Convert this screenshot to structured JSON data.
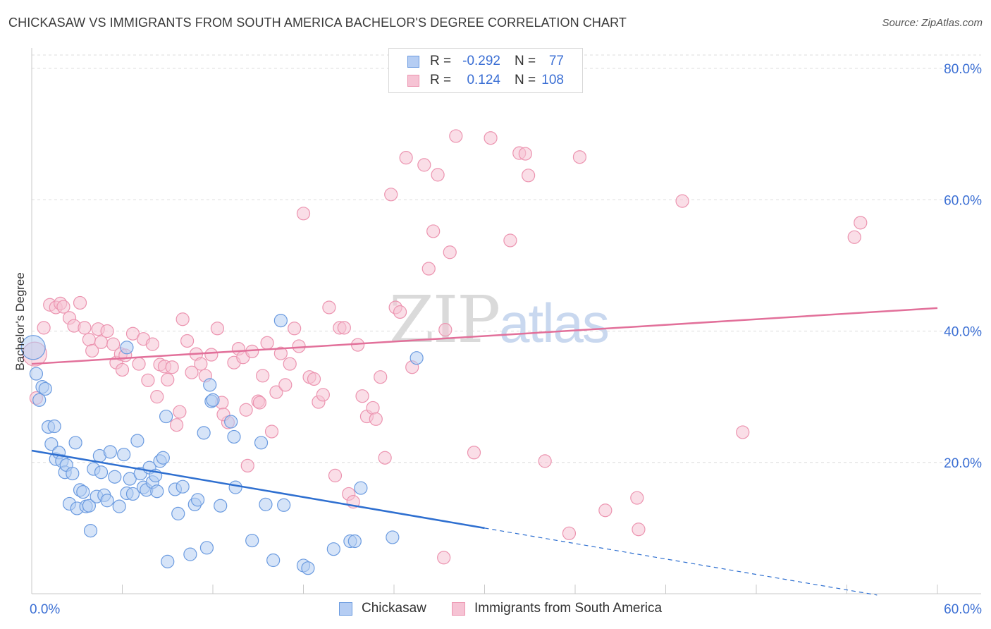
{
  "title": "CHICKASAW VS IMMIGRANTS FROM SOUTH AMERICA BACHELOR'S DEGREE CORRELATION CHART",
  "source": "Source: ZipAtlas.com",
  "watermark": {
    "zip": "ZIP",
    "atlas": "atlas"
  },
  "colors": {
    "blue": "#6b9be0",
    "blue_fill": "#b5cdf3",
    "blue_line": "#2e6fd0",
    "pink": "#ec94b0",
    "pink_fill": "#f6c3d4",
    "pink_line": "#e2709a",
    "axis_text": "#3b6fd4",
    "grid": "#dcdcdc"
  },
  "legend": {
    "r_label": "R =",
    "n_label": "N =",
    "entries": [
      {
        "name": "Chickasaw",
        "r": "-0.292",
        "n": "77"
      },
      {
        "name": "Immigrants from South America",
        "r": "0.124",
        "n": "108"
      }
    ]
  },
  "chart_data": {
    "type": "scatter",
    "title": "CHICKASAW VS IMMIGRANTS FROM SOUTH AMERICA BACHELOR'S DEGREE CORRELATION CHART",
    "xlabel": "",
    "ylabel": "Bachelor's Degree",
    "xlim": [
      0,
      60
    ],
    "ylim": [
      0,
      82
    ],
    "x_tick_labels": [
      "0.0%",
      "60.0%"
    ],
    "y_tick_labels": [
      "20.0%",
      "40.0%",
      "60.0%",
      "80.0%"
    ],
    "y_ticks": [
      20,
      40,
      60,
      80
    ],
    "x_ticks": [
      0,
      6,
      12,
      18,
      24,
      30,
      36,
      42,
      48,
      54,
      60
    ],
    "grid": true,
    "series": [
      {
        "name": "Chickasaw",
        "color": "blue",
        "points": [
          [
            0.1,
            37.5
          ],
          [
            0.3,
            33.5
          ],
          [
            0.5,
            29.5
          ],
          [
            0.7,
            31.5
          ],
          [
            0.9,
            31.2
          ],
          [
            1.1,
            25.4
          ],
          [
            1.3,
            22.8
          ],
          [
            1.5,
            25.5
          ],
          [
            1.6,
            20.5
          ],
          [
            1.8,
            21.5
          ],
          [
            2.0,
            20.2
          ],
          [
            2.2,
            18.5
          ],
          [
            2.3,
            19.6
          ],
          [
            2.5,
            13.7
          ],
          [
            2.7,
            18.3
          ],
          [
            2.9,
            23.0
          ],
          [
            3.0,
            13.0
          ],
          [
            3.2,
            15.8
          ],
          [
            3.4,
            15.5
          ],
          [
            3.6,
            13.3
          ],
          [
            3.8,
            13.4
          ],
          [
            3.9,
            9.6
          ],
          [
            4.1,
            19.0
          ],
          [
            4.3,
            14.8
          ],
          [
            4.5,
            21.0
          ],
          [
            4.6,
            18.5
          ],
          [
            4.8,
            15.0
          ],
          [
            5.0,
            14.2
          ],
          [
            5.2,
            21.6
          ],
          [
            5.5,
            17.8
          ],
          [
            5.8,
            13.3
          ],
          [
            6.1,
            21.2
          ],
          [
            6.3,
            15.3
          ],
          [
            6.5,
            17.5
          ],
          [
            6.7,
            15.2
          ],
          [
            7.0,
            23.3
          ],
          [
            7.2,
            18.3
          ],
          [
            7.4,
            16.2
          ],
          [
            7.6,
            15.8
          ],
          [
            7.8,
            19.2
          ],
          [
            8.0,
            17.0
          ],
          [
            8.2,
            18.0
          ],
          [
            8.3,
            15.6
          ],
          [
            8.5,
            20.2
          ],
          [
            8.7,
            20.7
          ],
          [
            8.9,
            27.0
          ],
          [
            9.0,
            4.9
          ],
          [
            9.5,
            15.9
          ],
          [
            9.7,
            12.2
          ],
          [
            10.0,
            16.3
          ],
          [
            10.5,
            6.0
          ],
          [
            10.8,
            13.6
          ],
          [
            11.0,
            14.3
          ],
          [
            11.4,
            24.5
          ],
          [
            11.6,
            7.0
          ],
          [
            11.8,
            31.8
          ],
          [
            11.9,
            29.3
          ],
          [
            12.0,
            29.5
          ],
          [
            12.5,
            13.4
          ],
          [
            13.2,
            26.2
          ],
          [
            13.4,
            23.9
          ],
          [
            13.5,
            16.2
          ],
          [
            14.6,
            8.1
          ],
          [
            15.2,
            23.0
          ],
          [
            15.5,
            13.6
          ],
          [
            16.0,
            5.1
          ],
          [
            16.5,
            41.6
          ],
          [
            16.7,
            13.5
          ],
          [
            18.0,
            4.3
          ],
          [
            18.3,
            3.9
          ],
          [
            20.0,
            6.8
          ],
          [
            21.1,
            8.0
          ],
          [
            21.4,
            8.0
          ],
          [
            21.8,
            16.1
          ],
          [
            23.9,
            8.6
          ],
          [
            25.5,
            35.9
          ],
          [
            6.3,
            37.5
          ]
        ]
      },
      {
        "name": "Immigrants from South America",
        "color": "pink",
        "points": [
          [
            0.2,
            36.5
          ],
          [
            0.3,
            29.8
          ],
          [
            0.8,
            40.5
          ],
          [
            1.2,
            44.0
          ],
          [
            1.6,
            43.6
          ],
          [
            1.9,
            44.2
          ],
          [
            2.1,
            43.7
          ],
          [
            2.5,
            42.0
          ],
          [
            2.8,
            40.8
          ],
          [
            3.2,
            44.3
          ],
          [
            3.5,
            40.5
          ],
          [
            3.8,
            38.7
          ],
          [
            4.0,
            37.0
          ],
          [
            4.4,
            40.3
          ],
          [
            4.6,
            38.3
          ],
          [
            5.0,
            40.0
          ],
          [
            5.4,
            38.0
          ],
          [
            5.6,
            35.2
          ],
          [
            5.9,
            36.5
          ],
          [
            6.2,
            36.3
          ],
          [
            6.7,
            39.6
          ],
          [
            7.1,
            35.0
          ],
          [
            7.4,
            38.8
          ],
          [
            7.7,
            32.5
          ],
          [
            8.0,
            38.0
          ],
          [
            8.3,
            30.0
          ],
          [
            8.5,
            34.9
          ],
          [
            8.8,
            34.6
          ],
          [
            9.0,
            32.6
          ],
          [
            9.3,
            34.5
          ],
          [
            9.6,
            25.7
          ],
          [
            10.0,
            41.8
          ],
          [
            10.3,
            38.5
          ],
          [
            10.6,
            33.7
          ],
          [
            10.9,
            36.5
          ],
          [
            11.2,
            35.0
          ],
          [
            11.5,
            33.2
          ],
          [
            11.9,
            36.4
          ],
          [
            12.3,
            40.4
          ],
          [
            12.6,
            29.1
          ],
          [
            13.0,
            26.1
          ],
          [
            13.4,
            35.2
          ],
          [
            13.7,
            37.3
          ],
          [
            14.0,
            36.0
          ],
          [
            14.3,
            19.5
          ],
          [
            14.6,
            36.9
          ],
          [
            15.0,
            29.3
          ],
          [
            15.3,
            33.2
          ],
          [
            15.6,
            38.2
          ],
          [
            15.9,
            24.7
          ],
          [
            16.2,
            30.7
          ],
          [
            16.5,
            36.6
          ],
          [
            16.8,
            31.8
          ],
          [
            17.1,
            35.0
          ],
          [
            17.4,
            40.4
          ],
          [
            17.7,
            37.7
          ],
          [
            18.0,
            57.9
          ],
          [
            18.4,
            33.0
          ],
          [
            18.7,
            32.7
          ],
          [
            19.0,
            29.2
          ],
          [
            19.3,
            30.3
          ],
          [
            19.7,
            43.6
          ],
          [
            20.1,
            18.0
          ],
          [
            20.4,
            40.5
          ],
          [
            20.7,
            40.5
          ],
          [
            21.0,
            15.2
          ],
          [
            21.3,
            14.0
          ],
          [
            21.6,
            37.9
          ],
          [
            21.9,
            30.1
          ],
          [
            22.2,
            27.0
          ],
          [
            22.6,
            28.3
          ],
          [
            22.8,
            26.6
          ],
          [
            23.1,
            33.0
          ],
          [
            23.4,
            20.7
          ],
          [
            23.8,
            60.8
          ],
          [
            24.1,
            43.6
          ],
          [
            24.4,
            42.9
          ],
          [
            24.8,
            66.4
          ],
          [
            25.2,
            34.5
          ],
          [
            26.0,
            65.3
          ],
          [
            26.3,
            49.5
          ],
          [
            26.6,
            55.2
          ],
          [
            26.9,
            63.8
          ],
          [
            27.3,
            5.5
          ],
          [
            27.7,
            52.0
          ],
          [
            28.1,
            69.7
          ],
          [
            29.3,
            21.5
          ],
          [
            30.4,
            69.4
          ],
          [
            31.7,
            53.8
          ],
          [
            32.3,
            67.1
          ],
          [
            32.7,
            67.0
          ],
          [
            32.9,
            63.7
          ],
          [
            34.0,
            20.2
          ],
          [
            35.6,
            9.2
          ],
          [
            36.3,
            66.5
          ],
          [
            38.0,
            12.7
          ],
          [
            40.1,
            14.6
          ],
          [
            40.2,
            9.8
          ],
          [
            43.1,
            59.8
          ],
          [
            47.1,
            24.6
          ],
          [
            54.5,
            54.3
          ],
          [
            54.9,
            56.5
          ],
          [
            27.4,
            40.2
          ],
          [
            15.1,
            29.1
          ],
          [
            12.7,
            27.3
          ],
          [
            9.8,
            27.7
          ],
          [
            14.2,
            28.0
          ],
          [
            6.0,
            34.1
          ]
        ]
      }
    ],
    "trendlines": [
      {
        "series": "Chickasaw",
        "x0": 0,
        "y0": 21.8,
        "x1": 30,
        "y1": 10.0,
        "dashed_to_x": 56,
        "dashed_to_y": -0.2
      },
      {
        "series": "Immigrants from South America",
        "x0": 0,
        "y0": 35.0,
        "x1": 60,
        "y1": 43.5
      }
    ]
  }
}
